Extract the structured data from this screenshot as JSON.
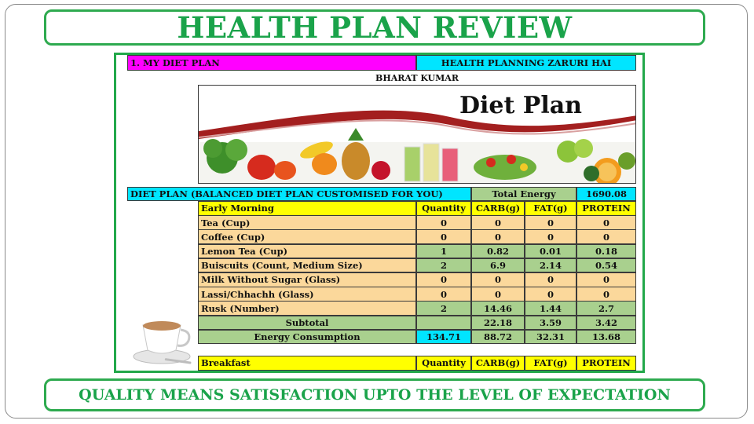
{
  "title": "HEALTH PLAN REVIEW",
  "footer": "QUALITY MEANS SATISFACTION UPTO THE LEVEL OF EXPECTATION",
  "sheet": {
    "section_label": "1. MY DIET PLAN",
    "slogan": "HEALTH PLANNING ZARURI HAI",
    "name": "BHARAT KUMAR",
    "image_title": "Diet Plan",
    "plan_label": "DIET PLAN (BALANCED DIET PLAN CUSTOMISED FOR YOU)",
    "total_energy_label": "Total Energy",
    "total_energy_value": "1690.08",
    "early_morning": {
      "header": [
        "Early Morning",
        "Quantity",
        "CARB(g)",
        "FAT(g)",
        "PROTEIN"
      ],
      "rows": [
        [
          "Tea (Cup)",
          "0",
          "0",
          "0",
          "0"
        ],
        [
          "Coffee (Cup)",
          "0",
          "0",
          "0",
          "0"
        ],
        [
          "Lemon Tea (Cup)",
          "1",
          "0.82",
          "0.01",
          "0.18"
        ],
        [
          "Buiscuits (Count, Medium Size)",
          "2",
          "6.9",
          "2.14",
          "0.54"
        ],
        [
          "Milk Without Sugar (Glass)",
          "0",
          "0",
          "0",
          "0"
        ],
        [
          "Lassi/Chhachh (Glass)",
          "0",
          "0",
          "0",
          "0"
        ],
        [
          "Rusk (Number)",
          "2",
          "14.46",
          "1.44",
          "2.7"
        ]
      ],
      "subtotal": [
        "Subtotal",
        "",
        "22.18",
        "3.59",
        "3.42"
      ],
      "energy": [
        "Energy Consumption",
        "134.71",
        "88.72",
        "32.31",
        "13.68"
      ]
    },
    "breakfast": {
      "header": [
        "Breakfast",
        "Quantity",
        "CARB(g)",
        "FAT(g)",
        "PROTEIN"
      ]
    }
  },
  "colors": {
    "accent_green": "#1aa34a",
    "header_yellow": "#ffff00",
    "row_tan": "#fbd89b",
    "total_green": "#a9d08e",
    "cyan": "#00e5ff",
    "magenta": "#ff00ff"
  },
  "icons": [
    "tea-cup-icon"
  ]
}
